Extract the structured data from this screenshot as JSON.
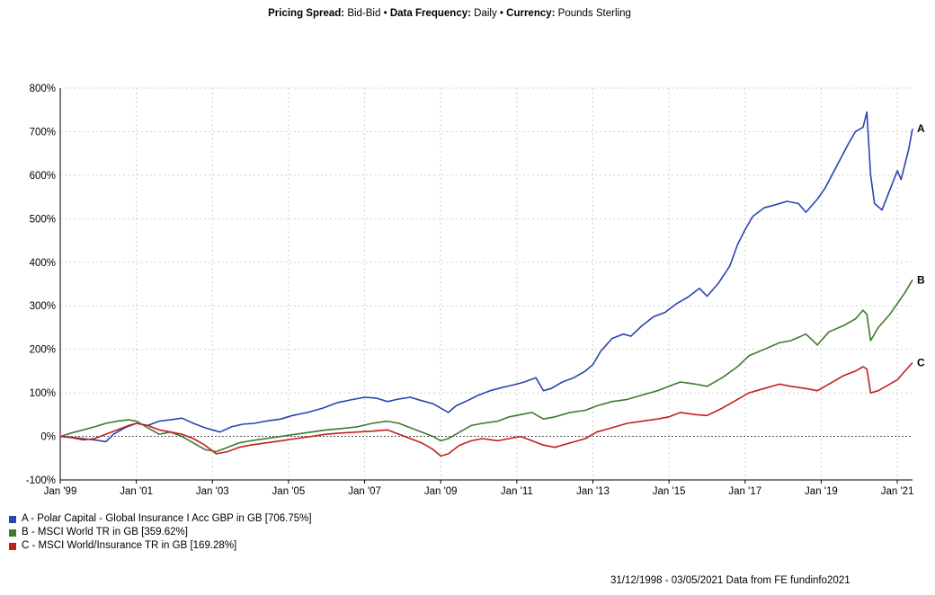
{
  "header": {
    "spread_label": "Pricing Spread:",
    "spread_value": "Bid-Bid",
    "freq_label": "Data Frequency:",
    "freq_value": "Daily",
    "currency_label": "Currency:",
    "currency_value": "Pounds Sterling"
  },
  "source_text": "31/12/1998 - 03/05/2021 Data from FE fundinfo2021",
  "chart_data": {
    "type": "line",
    "title": "",
    "xlabel": "",
    "ylabel": "",
    "xlim": [
      1999.0,
      2021.4
    ],
    "ylim": [
      -100,
      800
    ],
    "grid": true,
    "x_ticks": [
      {
        "x": 1999,
        "label": "Jan '99"
      },
      {
        "x": 2001,
        "label": "Jan '01"
      },
      {
        "x": 2003,
        "label": "Jan '03"
      },
      {
        "x": 2005,
        "label": "Jan '05"
      },
      {
        "x": 2007,
        "label": "Jan '07"
      },
      {
        "x": 2009,
        "label": "Jan '09"
      },
      {
        "x": 2011,
        "label": "Jan '11"
      },
      {
        "x": 2013,
        "label": "Jan '13"
      },
      {
        "x": 2015,
        "label": "Jan '15"
      },
      {
        "x": 2017,
        "label": "Jan '17"
      },
      {
        "x": 2019,
        "label": "Jan '19"
      },
      {
        "x": 2021,
        "label": "Jan '21"
      }
    ],
    "y_ticks": [
      {
        "y": 800,
        "label": "800%"
      },
      {
        "y": 700,
        "label": "700%"
      },
      {
        "y": 600,
        "label": "600%"
      },
      {
        "y": 500,
        "label": "500%"
      },
      {
        "y": 400,
        "label": "400%"
      },
      {
        "y": 300,
        "label": "300%"
      },
      {
        "y": 200,
        "label": "200%"
      },
      {
        "y": 100,
        "label": "100%"
      },
      {
        "y": 0,
        "label": "0%"
      },
      {
        "y": -100,
        "label": "-100%"
      }
    ],
    "series": [
      {
        "key": "A",
        "name": "A - Polar Capital - Global Insurance I Acc GBP in GB [706.75%]",
        "color": "#2a44b0",
        "points": [
          [
            1999.0,
            0
          ],
          [
            1999.3,
            -2
          ],
          [
            1999.6,
            -5
          ],
          [
            1999.9,
            -8
          ],
          [
            2000.2,
            -12
          ],
          [
            2000.4,
            5
          ],
          [
            2000.7,
            20
          ],
          [
            2001.0,
            30
          ],
          [
            2001.3,
            25
          ],
          [
            2001.6,
            35
          ],
          [
            2001.9,
            38
          ],
          [
            2002.2,
            42
          ],
          [
            2002.5,
            30
          ],
          [
            2002.8,
            20
          ],
          [
            2003.0,
            15
          ],
          [
            2003.2,
            10
          ],
          [
            2003.5,
            22
          ],
          [
            2003.8,
            28
          ],
          [
            2004.1,
            30
          ],
          [
            2004.4,
            35
          ],
          [
            2004.8,
            40
          ],
          [
            2005.1,
            48
          ],
          [
            2005.5,
            55
          ],
          [
            2005.9,
            65
          ],
          [
            2006.3,
            78
          ],
          [
            2006.7,
            85
          ],
          [
            2007.0,
            90
          ],
          [
            2007.3,
            88
          ],
          [
            2007.6,
            80
          ],
          [
            2007.9,
            86
          ],
          [
            2008.2,
            90
          ],
          [
            2008.5,
            82
          ],
          [
            2008.8,
            75
          ],
          [
            2009.0,
            65
          ],
          [
            2009.2,
            55
          ],
          [
            2009.4,
            70
          ],
          [
            2009.7,
            82
          ],
          [
            2010.0,
            95
          ],
          [
            2010.3,
            105
          ],
          [
            2010.6,
            112
          ],
          [
            2010.9,
            118
          ],
          [
            2011.2,
            125
          ],
          [
            2011.5,
            135
          ],
          [
            2011.7,
            105
          ],
          [
            2011.9,
            110
          ],
          [
            2012.2,
            125
          ],
          [
            2012.5,
            135
          ],
          [
            2012.8,
            150
          ],
          [
            2013.0,
            165
          ],
          [
            2013.2,
            195
          ],
          [
            2013.5,
            225
          ],
          [
            2013.8,
            235
          ],
          [
            2014.0,
            230
          ],
          [
            2014.3,
            255
          ],
          [
            2014.6,
            275
          ],
          [
            2014.9,
            285
          ],
          [
            2015.2,
            305
          ],
          [
            2015.5,
            320
          ],
          [
            2015.8,
            340
          ],
          [
            2016.0,
            322
          ],
          [
            2016.3,
            352
          ],
          [
            2016.6,
            392
          ],
          [
            2016.8,
            440
          ],
          [
            2017.0,
            475
          ],
          [
            2017.2,
            505
          ],
          [
            2017.5,
            525
          ],
          [
            2017.8,
            532
          ],
          [
            2018.1,
            540
          ],
          [
            2018.4,
            535
          ],
          [
            2018.6,
            515
          ],
          [
            2018.9,
            545
          ],
          [
            2019.1,
            570
          ],
          [
            2019.4,
            620
          ],
          [
            2019.7,
            670
          ],
          [
            2019.9,
            700
          ],
          [
            2020.1,
            710
          ],
          [
            2020.2,
            745
          ],
          [
            2020.3,
            600
          ],
          [
            2020.4,
            535
          ],
          [
            2020.6,
            520
          ],
          [
            2020.8,
            565
          ],
          [
            2021.0,
            610
          ],
          [
            2021.1,
            590
          ],
          [
            2021.3,
            660
          ],
          [
            2021.4,
            706.75
          ]
        ]
      },
      {
        "key": "B",
        "name": "B - MSCI World TR in GB [359.62%]",
        "color": "#3c7a2c",
        "points": [
          [
            1999.0,
            0
          ],
          [
            1999.3,
            8
          ],
          [
            1999.6,
            15
          ],
          [
            1999.9,
            22
          ],
          [
            2000.2,
            30
          ],
          [
            2000.5,
            35
          ],
          [
            2000.8,
            38
          ],
          [
            2001.0,
            35
          ],
          [
            2001.3,
            20
          ],
          [
            2001.6,
            5
          ],
          [
            2001.9,
            10
          ],
          [
            2002.2,
            0
          ],
          [
            2002.5,
            -15
          ],
          [
            2002.8,
            -30
          ],
          [
            2003.1,
            -35
          ],
          [
            2003.4,
            -25
          ],
          [
            2003.7,
            -15
          ],
          [
            2004.0,
            -10
          ],
          [
            2004.4,
            -5
          ],
          [
            2004.8,
            0
          ],
          [
            2005.2,
            5
          ],
          [
            2005.6,
            10
          ],
          [
            2006.0,
            15
          ],
          [
            2006.4,
            18
          ],
          [
            2006.8,
            22
          ],
          [
            2007.2,
            30
          ],
          [
            2007.6,
            35
          ],
          [
            2007.9,
            30
          ],
          [
            2008.2,
            20
          ],
          [
            2008.5,
            10
          ],
          [
            2008.8,
            0
          ],
          [
            2009.0,
            -10
          ],
          [
            2009.2,
            -5
          ],
          [
            2009.5,
            10
          ],
          [
            2009.8,
            25
          ],
          [
            2010.1,
            30
          ],
          [
            2010.5,
            35
          ],
          [
            2010.8,
            45
          ],
          [
            2011.1,
            50
          ],
          [
            2011.4,
            55
          ],
          [
            2011.7,
            40
          ],
          [
            2012.0,
            45
          ],
          [
            2012.4,
            55
          ],
          [
            2012.8,
            60
          ],
          [
            2013.1,
            70
          ],
          [
            2013.5,
            80
          ],
          [
            2013.9,
            85
          ],
          [
            2014.3,
            95
          ],
          [
            2014.7,
            105
          ],
          [
            2015.0,
            115
          ],
          [
            2015.3,
            125
          ],
          [
            2015.7,
            120
          ],
          [
            2016.0,
            115
          ],
          [
            2016.4,
            135
          ],
          [
            2016.8,
            160
          ],
          [
            2017.1,
            185
          ],
          [
            2017.5,
            200
          ],
          [
            2017.9,
            215
          ],
          [
            2018.2,
            220
          ],
          [
            2018.6,
            235
          ],
          [
            2018.9,
            210
          ],
          [
            2019.2,
            240
          ],
          [
            2019.6,
            255
          ],
          [
            2019.9,
            270
          ],
          [
            2020.1,
            290
          ],
          [
            2020.2,
            280
          ],
          [
            2020.3,
            220
          ],
          [
            2020.5,
            250
          ],
          [
            2020.8,
            280
          ],
          [
            2021.0,
            305
          ],
          [
            2021.2,
            330
          ],
          [
            2021.4,
            359.62
          ]
        ]
      },
      {
        "key": "C",
        "name": "C - MSCI World/Insurance TR in GB [169.28%]",
        "color": "#c0201e",
        "points": [
          [
            1999.0,
            0
          ],
          [
            1999.3,
            -3
          ],
          [
            1999.6,
            -8
          ],
          [
            1999.9,
            -5
          ],
          [
            2000.2,
            5
          ],
          [
            2000.5,
            15
          ],
          [
            2000.8,
            25
          ],
          [
            2001.0,
            30
          ],
          [
            2001.3,
            25
          ],
          [
            2001.6,
            15
          ],
          [
            2001.9,
            10
          ],
          [
            2002.2,
            5
          ],
          [
            2002.5,
            -5
          ],
          [
            2002.8,
            -20
          ],
          [
            2003.1,
            -40
          ],
          [
            2003.4,
            -35
          ],
          [
            2003.7,
            -25
          ],
          [
            2004.0,
            -20
          ],
          [
            2004.4,
            -15
          ],
          [
            2004.8,
            -10
          ],
          [
            2005.2,
            -5
          ],
          [
            2005.6,
            0
          ],
          [
            2006.0,
            5
          ],
          [
            2006.4,
            8
          ],
          [
            2006.8,
            10
          ],
          [
            2007.2,
            12
          ],
          [
            2007.6,
            15
          ],
          [
            2007.9,
            5
          ],
          [
            2008.2,
            -5
          ],
          [
            2008.5,
            -15
          ],
          [
            2008.8,
            -30
          ],
          [
            2009.0,
            -45
          ],
          [
            2009.2,
            -40
          ],
          [
            2009.5,
            -20
          ],
          [
            2009.8,
            -10
          ],
          [
            2010.1,
            -5
          ],
          [
            2010.5,
            -10
          ],
          [
            2010.8,
            -5
          ],
          [
            2011.1,
            0
          ],
          [
            2011.4,
            -10
          ],
          [
            2011.7,
            -20
          ],
          [
            2012.0,
            -25
          ],
          [
            2012.4,
            -15
          ],
          [
            2012.8,
            -5
          ],
          [
            2013.1,
            10
          ],
          [
            2013.5,
            20
          ],
          [
            2013.9,
            30
          ],
          [
            2014.3,
            35
          ],
          [
            2014.7,
            40
          ],
          [
            2015.0,
            45
          ],
          [
            2015.3,
            55
          ],
          [
            2015.7,
            50
          ],
          [
            2016.0,
            48
          ],
          [
            2016.4,
            65
          ],
          [
            2016.8,
            85
          ],
          [
            2017.1,
            100
          ],
          [
            2017.5,
            110
          ],
          [
            2017.9,
            120
          ],
          [
            2018.2,
            115
          ],
          [
            2018.6,
            110
          ],
          [
            2018.9,
            105
          ],
          [
            2019.2,
            120
          ],
          [
            2019.6,
            140
          ],
          [
            2019.9,
            150
          ],
          [
            2020.1,
            160
          ],
          [
            2020.2,
            155
          ],
          [
            2020.3,
            100
          ],
          [
            2020.5,
            105
          ],
          [
            2020.8,
            120
          ],
          [
            2021.0,
            130
          ],
          [
            2021.2,
            150
          ],
          [
            2021.4,
            169.28
          ]
        ]
      }
    ]
  }
}
